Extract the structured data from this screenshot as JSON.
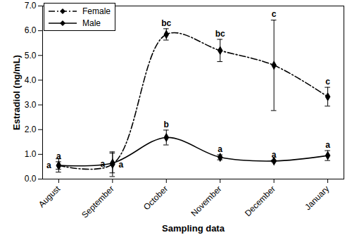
{
  "chart_data": {
    "type": "line",
    "x_label": "Sampling data",
    "y_label": "Estradiol (ng/mL)",
    "categories": [
      "August",
      "September",
      "October",
      "November",
      "December",
      "January"
    ],
    "ylim": [
      0,
      7
    ],
    "yticks": [
      0,
      1,
      2,
      3,
      4,
      5,
      6,
      7
    ],
    "legend": "upper left",
    "series": [
      {
        "name": "Female",
        "color": "#000000",
        "marker": "diamond",
        "line_style": "dashdot",
        "values": [
          0.55,
          0.6,
          5.85,
          5.2,
          4.6,
          3.33
        ],
        "errors": [
          0.27,
          0.5,
          0.23,
          0.45,
          1.83,
          0.38
        ],
        "letters": [
          "a",
          "a",
          "bc",
          "bc",
          "c",
          "c"
        ]
      },
      {
        "name": "Male",
        "color": "#000000",
        "marker": "diamond",
        "line_style": "solid",
        "values": [
          0.55,
          0.65,
          1.68,
          0.88,
          0.73,
          0.95
        ],
        "errors": [
          0.15,
          0.4,
          0.3,
          0.1,
          0.03,
          0.2
        ],
        "letters": [
          "a",
          "a",
          "b",
          "a",
          "a",
          "a"
        ]
      }
    ]
  }
}
